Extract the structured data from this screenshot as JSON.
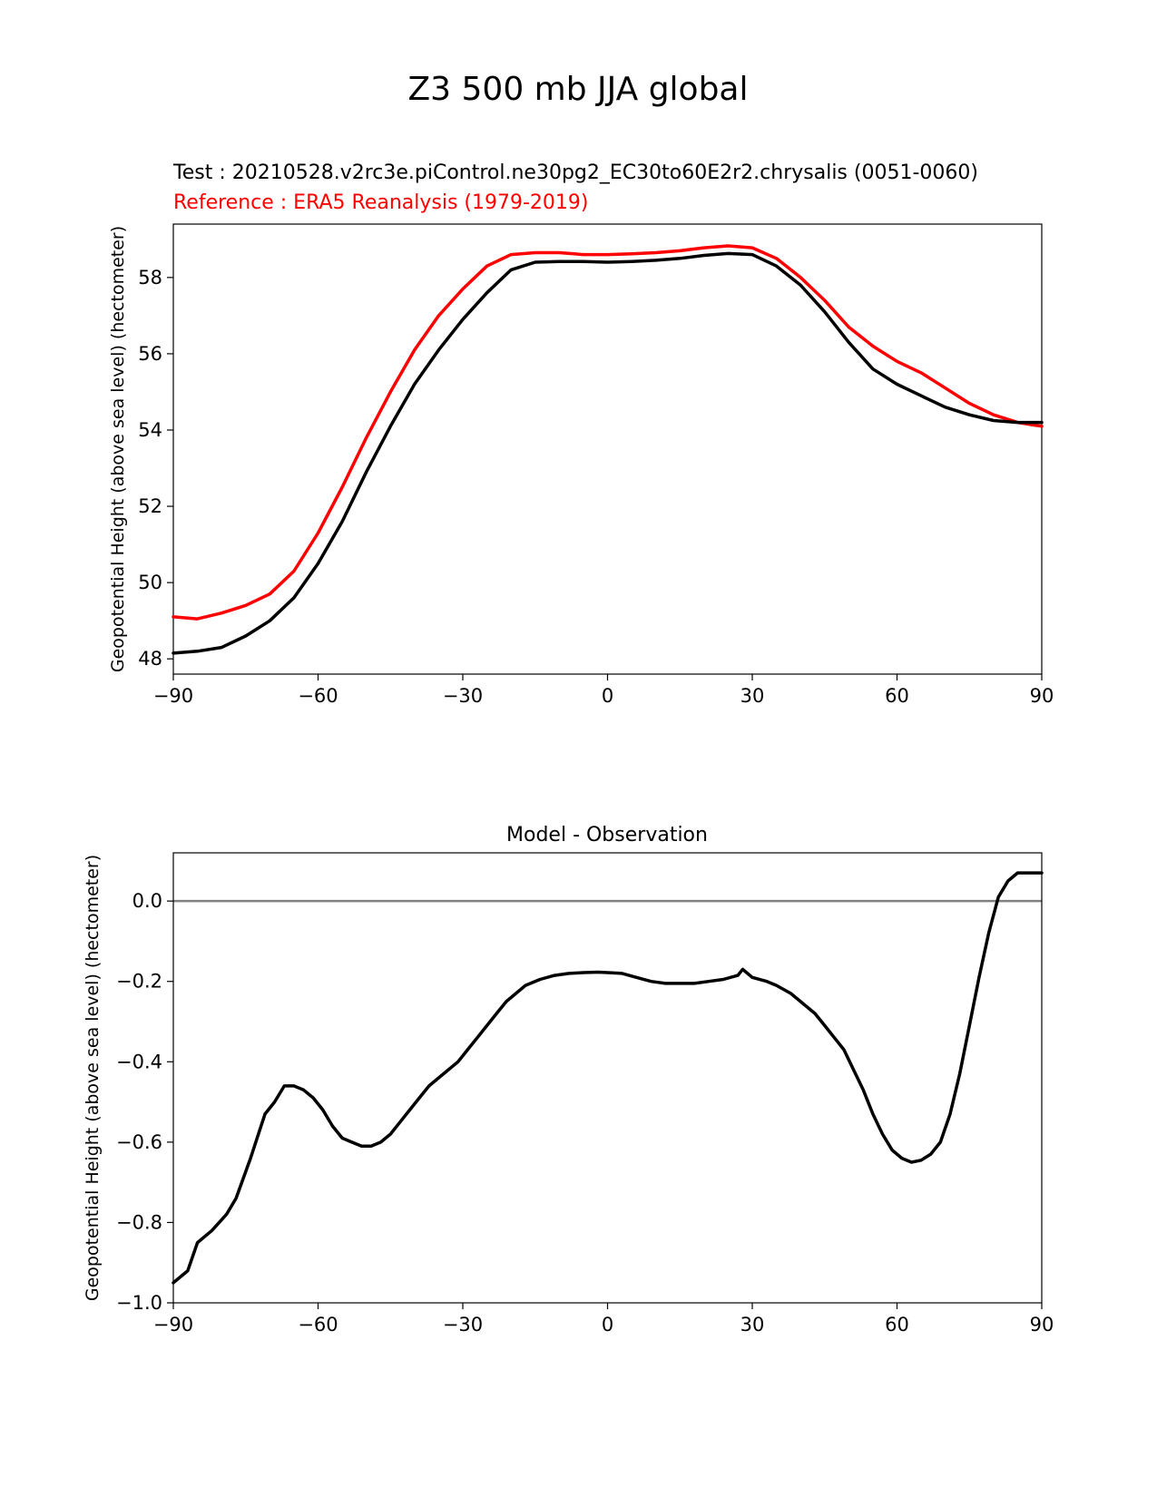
{
  "figure": {
    "suptitle": "Z3 500 mb JJA global"
  },
  "chart_data": [
    {
      "type": "line",
      "test_label": "Test : 20210528.v2rc3e.piControl.ne30pg2_EC30to60E2r2.chrysalis (0051-0060)",
      "reference_label": "Reference : ERA5 Reanalysis (1979-2019)",
      "ylabel": "Geopotential Height (above sea level) (hectometer)",
      "xlabel": "",
      "xlim": [
        -90,
        90
      ],
      "ylim": [
        47.6,
        59.4
      ],
      "xticks": [
        -90,
        -60,
        -30,
        0,
        30,
        60,
        90
      ],
      "xtick_labels": [
        "−90",
        "−60",
        "−30",
        "0",
        "30",
        "60",
        "90"
      ],
      "yticks": [
        48,
        50,
        52,
        54,
        56,
        58
      ],
      "ytick_labels": [
        "48",
        "50",
        "52",
        "54",
        "56",
        "58"
      ],
      "grid": false,
      "series": [
        {
          "color": "#ff0000",
          "x": [
            -90,
            -85,
            -80,
            -75,
            -70,
            -65,
            -60,
            -55,
            -50,
            -45,
            -40,
            -35,
            -30,
            -25,
            -20,
            -15,
            -10,
            -5,
            0,
            5,
            10,
            15,
            20,
            25,
            30,
            35,
            40,
            45,
            50,
            55,
            60,
            65,
            70,
            75,
            80,
            85,
            90
          ],
          "y": [
            49.1,
            49.05,
            49.2,
            49.4,
            49.7,
            50.3,
            51.3,
            52.5,
            53.8,
            55.0,
            56.1,
            57.0,
            57.7,
            58.3,
            58.6,
            58.65,
            58.65,
            58.6,
            58.6,
            58.62,
            58.65,
            58.7,
            58.78,
            58.83,
            58.78,
            58.5,
            58.0,
            57.4,
            56.7,
            56.2,
            55.8,
            55.5,
            55.1,
            54.7,
            54.4,
            54.2,
            54.1
          ]
        },
        {
          "color": "#000000",
          "x": [
            -90,
            -85,
            -80,
            -75,
            -70,
            -65,
            -60,
            -55,
            -50,
            -45,
            -40,
            -35,
            -30,
            -25,
            -20,
            -15,
            -10,
            -5,
            0,
            5,
            10,
            15,
            20,
            25,
            30,
            35,
            40,
            45,
            50,
            55,
            60,
            65,
            70,
            75,
            80,
            85,
            90
          ],
          "y": [
            48.15,
            48.2,
            48.3,
            48.6,
            49.0,
            49.6,
            50.5,
            51.6,
            52.9,
            54.1,
            55.2,
            56.1,
            56.9,
            57.6,
            58.2,
            58.4,
            58.42,
            58.42,
            58.4,
            58.42,
            58.45,
            58.5,
            58.58,
            58.63,
            58.6,
            58.3,
            57.8,
            57.1,
            56.3,
            55.6,
            55.2,
            54.9,
            54.6,
            54.4,
            54.25,
            54.2,
            54.2
          ]
        }
      ]
    },
    {
      "type": "line",
      "title": "Model - Observation",
      "ylabel": "Geopotential Height (above sea level) (hectometer)",
      "xlabel": "",
      "xlim": [
        -90,
        90
      ],
      "ylim": [
        -1.0,
        0.12
      ],
      "xticks": [
        -90,
        -60,
        -30,
        0,
        30,
        60,
        90
      ],
      "xtick_labels": [
        "−90",
        "−60",
        "−30",
        "0",
        "30",
        "60",
        "90"
      ],
      "yticks": [
        -1.0,
        -0.8,
        -0.6,
        -0.4,
        -0.2,
        0.0
      ],
      "ytick_labels": [
        "−1.0",
        "−0.8",
        "−0.6",
        "−0.4",
        "−0.2",
        "0.0"
      ],
      "grid": false,
      "zero_line_color": "#808080",
      "series": [
        {
          "color": "#000000",
          "x": [
            -90,
            -87,
            -85,
            -82,
            -79,
            -77,
            -74,
            -71,
            -69,
            -67,
            -65,
            -63,
            -61,
            -59,
            -57,
            -55,
            -53,
            -51,
            -49,
            -47,
            -45,
            -43,
            -41,
            -39,
            -37,
            -35,
            -33,
            -31,
            -29,
            -27,
            -25,
            -23,
            -21,
            -19,
            -17,
            -14,
            -11,
            -8,
            -5,
            -2,
            0,
            3,
            6,
            9,
            12,
            15,
            18,
            21,
            24,
            27,
            28,
            30,
            33,
            35,
            38,
            40,
            43,
            45,
            47,
            49,
            51,
            53,
            55,
            57,
            59,
            61,
            63,
            65,
            67,
            69,
            71,
            73,
            75,
            77,
            79,
            81,
            83,
            85,
            87,
            88,
            90
          ],
          "y": [
            -0.95,
            -0.92,
            -0.85,
            -0.82,
            -0.78,
            -0.74,
            -0.64,
            -0.53,
            -0.5,
            -0.46,
            -0.46,
            -0.47,
            -0.49,
            -0.52,
            -0.56,
            -0.59,
            -0.6,
            -0.61,
            -0.61,
            -0.6,
            -0.58,
            -0.55,
            -0.52,
            -0.49,
            -0.46,
            -0.44,
            -0.42,
            -0.4,
            -0.37,
            -0.34,
            -0.31,
            -0.28,
            -0.25,
            -0.23,
            -0.21,
            -0.195,
            -0.185,
            -0.18,
            -0.178,
            -0.177,
            -0.178,
            -0.18,
            -0.19,
            -0.2,
            -0.205,
            -0.205,
            -0.205,
            -0.2,
            -0.195,
            -0.185,
            -0.17,
            -0.19,
            -0.2,
            -0.21,
            -0.23,
            -0.25,
            -0.28,
            -0.31,
            -0.34,
            -0.37,
            -0.42,
            -0.47,
            -0.53,
            -0.58,
            -0.62,
            -0.64,
            -0.65,
            -0.645,
            -0.63,
            -0.6,
            -0.53,
            -0.43,
            -0.31,
            -0.19,
            -0.08,
            0.01,
            0.05,
            0.07,
            0.07,
            0.07,
            0.07
          ]
        }
      ]
    }
  ]
}
